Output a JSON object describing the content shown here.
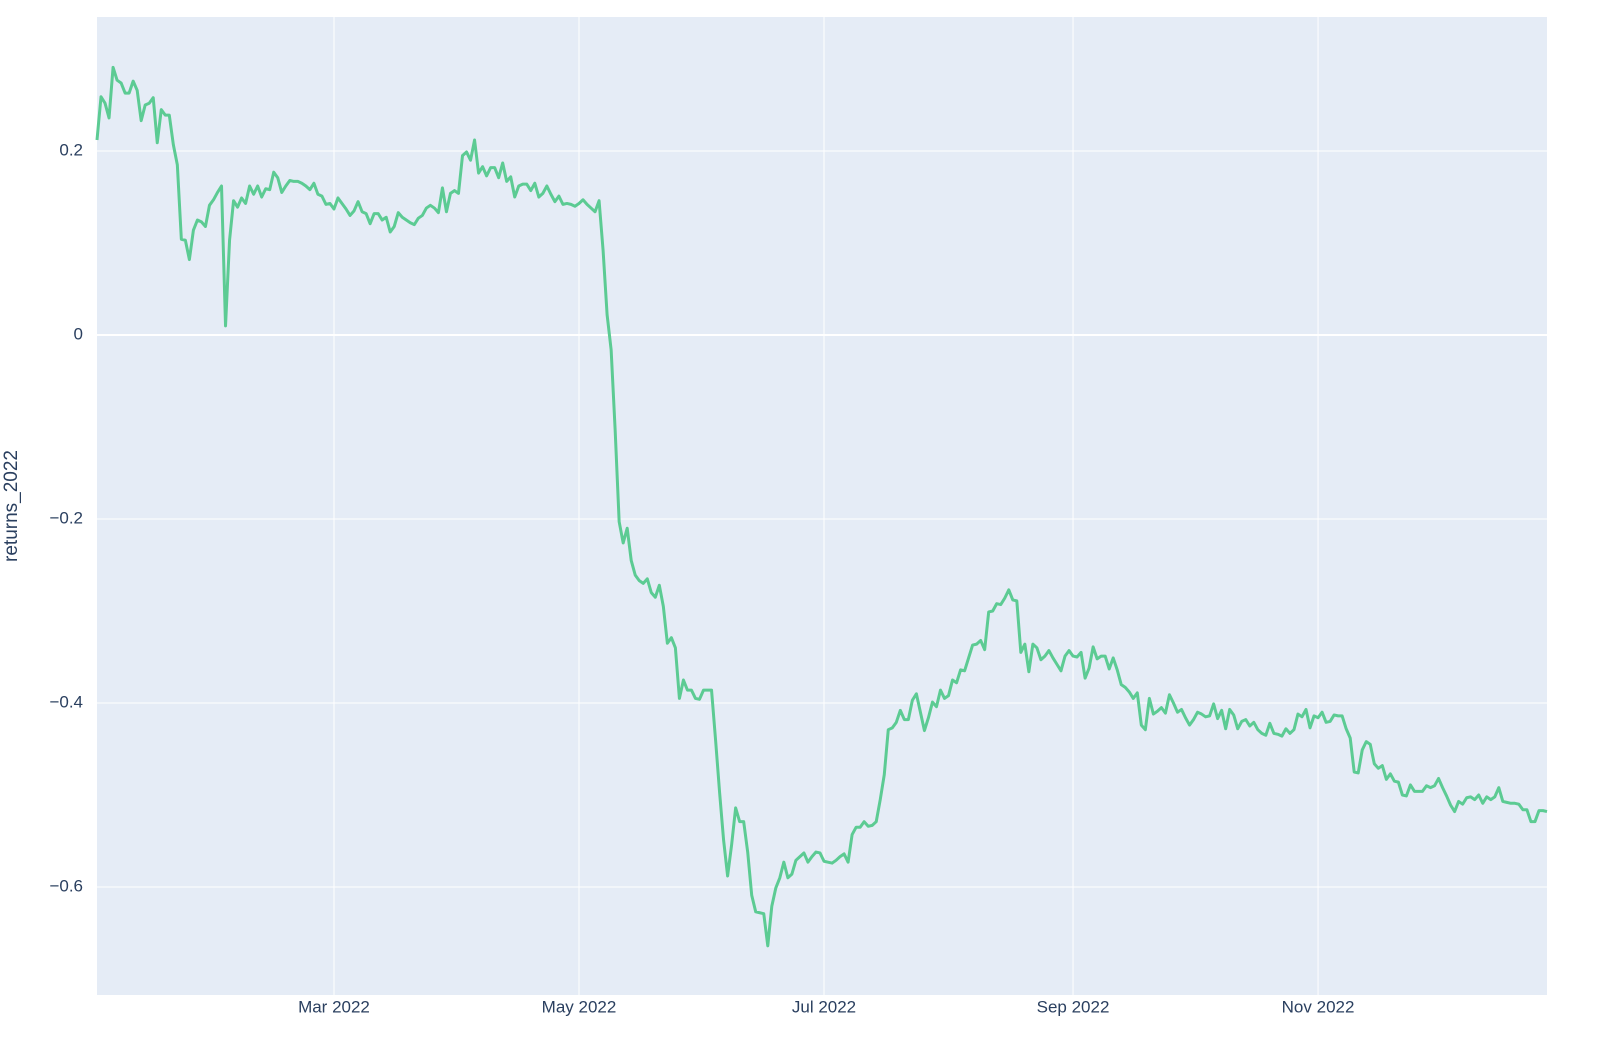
{
  "chart_data": {
    "type": "line",
    "y_label": "returns_2022",
    "color": "#5ccb93",
    "grid": true,
    "xlim": [
      "2022-01-01",
      "2022-12-28"
    ],
    "ylim": [
      -0.7174,
      0.3457
    ],
    "xticks": [
      {
        "value": "2022-03-01",
        "label": "Mar 2022"
      },
      {
        "value": "2022-05-01",
        "label": "May 2022"
      },
      {
        "value": "2022-07-01",
        "label": "Jul 2022"
      },
      {
        "value": "2022-09-01",
        "label": "Sep 2022"
      },
      {
        "value": "2022-11-01",
        "label": "Nov 2022"
      }
    ],
    "yticks": [
      {
        "value": -0.6,
        "label": "−0.6"
      },
      {
        "value": -0.4,
        "label": "−0.4"
      },
      {
        "value": -0.2,
        "label": "−0.2"
      },
      0,
      0.2
    ],
    "x": [
      "2022-01-01",
      "2022-01-02",
      "2022-01-03",
      "2022-01-04",
      "2022-01-05",
      "2022-01-06",
      "2022-01-07",
      "2022-01-08",
      "2022-01-09",
      "2022-01-10",
      "2022-01-11",
      "2022-01-12",
      "2022-01-13",
      "2022-01-14",
      "2022-01-15",
      "2022-01-16",
      "2022-01-17",
      "2022-01-18",
      "2022-01-19",
      "2022-01-20",
      "2022-01-21",
      "2022-01-22",
      "2022-01-23",
      "2022-01-24",
      "2022-01-25",
      "2022-01-26",
      "2022-01-27",
      "2022-01-28",
      "2022-01-29",
      "2022-01-30",
      "2022-01-31",
      "2022-02-01",
      "2022-02-02",
      "2022-02-03",
      "2022-02-04",
      "2022-02-05",
      "2022-02-06",
      "2022-02-07",
      "2022-02-08",
      "2022-02-09",
      "2022-02-10",
      "2022-02-11",
      "2022-02-12",
      "2022-02-13",
      "2022-02-14",
      "2022-02-15",
      "2022-02-16",
      "2022-02-17",
      "2022-02-18",
      "2022-02-19",
      "2022-02-20",
      "2022-02-21",
      "2022-02-22",
      "2022-02-23",
      "2022-02-24",
      "2022-02-25",
      "2022-02-26",
      "2022-02-27",
      "2022-02-28",
      "2022-03-01",
      "2022-03-02",
      "2022-03-03",
      "2022-03-04",
      "2022-03-05",
      "2022-03-06",
      "2022-03-07",
      "2022-03-08",
      "2022-03-09",
      "2022-03-10",
      "2022-03-11",
      "2022-03-12",
      "2022-03-13",
      "2022-03-14",
      "2022-03-15",
      "2022-03-16",
      "2022-03-17",
      "2022-03-18",
      "2022-03-19",
      "2022-03-20",
      "2022-03-21",
      "2022-03-22",
      "2022-03-23",
      "2022-03-24",
      "2022-03-25",
      "2022-03-26",
      "2022-03-27",
      "2022-03-28",
      "2022-03-29",
      "2022-03-30",
      "2022-03-31",
      "2022-04-01",
      "2022-04-02",
      "2022-04-03",
      "2022-04-04",
      "2022-04-05",
      "2022-04-06",
      "2022-04-07",
      "2022-04-08",
      "2022-04-09",
      "2022-04-10",
      "2022-04-11",
      "2022-04-12",
      "2022-04-13",
      "2022-04-14",
      "2022-04-15",
      "2022-04-16",
      "2022-04-17",
      "2022-04-18",
      "2022-04-19",
      "2022-04-20",
      "2022-04-21",
      "2022-04-22",
      "2022-04-23",
      "2022-04-24",
      "2022-04-25",
      "2022-04-26",
      "2022-04-27",
      "2022-04-28",
      "2022-04-29",
      "2022-04-30",
      "2022-05-01",
      "2022-05-02",
      "2022-05-03",
      "2022-05-04",
      "2022-05-05",
      "2022-05-06",
      "2022-05-07",
      "2022-05-08",
      "2022-05-09",
      "2022-05-10",
      "2022-05-11",
      "2022-05-12",
      "2022-05-13",
      "2022-05-14",
      "2022-05-15",
      "2022-05-16",
      "2022-05-17",
      "2022-05-18",
      "2022-05-19",
      "2022-05-20",
      "2022-05-21",
      "2022-05-22",
      "2022-05-23",
      "2022-05-24",
      "2022-05-25",
      "2022-05-26",
      "2022-05-27",
      "2022-05-28",
      "2022-05-29",
      "2022-05-30",
      "2022-05-31",
      "2022-06-01",
      "2022-06-02",
      "2022-06-03",
      "2022-06-04",
      "2022-06-05",
      "2022-06-06",
      "2022-06-07",
      "2022-06-08",
      "2022-06-09",
      "2022-06-10",
      "2022-06-11",
      "2022-06-12",
      "2022-06-13",
      "2022-06-14",
      "2022-06-15",
      "2022-06-16",
      "2022-06-17",
      "2022-06-18",
      "2022-06-19",
      "2022-06-20",
      "2022-06-21",
      "2022-06-22",
      "2022-06-23",
      "2022-06-24",
      "2022-06-25",
      "2022-06-26",
      "2022-06-27",
      "2022-06-28",
      "2022-06-29",
      "2022-06-30",
      "2022-07-01",
      "2022-07-02",
      "2022-07-03",
      "2022-07-04",
      "2022-07-05",
      "2022-07-06",
      "2022-07-07",
      "2022-07-08",
      "2022-07-09",
      "2022-07-10",
      "2022-07-11",
      "2022-07-12",
      "2022-07-13",
      "2022-07-14",
      "2022-07-15",
      "2022-07-16",
      "2022-07-17",
      "2022-07-18",
      "2022-07-19",
      "2022-07-20",
      "2022-07-21",
      "2022-07-22",
      "2022-07-23",
      "2022-07-24",
      "2022-07-25",
      "2022-07-26",
      "2022-07-27",
      "2022-07-28",
      "2022-07-29",
      "2022-07-30",
      "2022-07-31",
      "2022-08-01",
      "2022-08-02",
      "2022-08-03",
      "2022-08-04",
      "2022-08-05",
      "2022-08-06",
      "2022-08-07",
      "2022-08-08",
      "2022-08-09",
      "2022-08-10",
      "2022-08-11",
      "2022-08-12",
      "2022-08-13",
      "2022-08-14",
      "2022-08-15",
      "2022-08-16",
      "2022-08-17",
      "2022-08-18",
      "2022-08-19",
      "2022-08-20",
      "2022-08-21",
      "2022-08-22",
      "2022-08-23",
      "2022-08-24",
      "2022-08-25",
      "2022-08-26",
      "2022-08-27",
      "2022-08-28",
      "2022-08-29",
      "2022-08-30",
      "2022-08-31",
      "2022-09-01",
      "2022-09-02",
      "2022-09-03",
      "2022-09-04",
      "2022-09-05",
      "2022-09-06",
      "2022-09-07",
      "2022-09-08",
      "2022-09-09",
      "2022-09-10",
      "2022-09-11",
      "2022-09-12",
      "2022-09-13",
      "2022-09-14",
      "2022-09-15",
      "2022-09-16",
      "2022-09-17",
      "2022-09-18",
      "2022-09-19",
      "2022-09-20",
      "2022-09-21",
      "2022-09-22",
      "2022-09-23",
      "2022-09-24",
      "2022-09-25",
      "2022-09-26",
      "2022-09-27",
      "2022-09-28",
      "2022-09-29",
      "2022-09-30",
      "2022-10-01",
      "2022-10-02",
      "2022-10-03",
      "2022-10-04",
      "2022-10-05",
      "2022-10-06",
      "2022-10-07",
      "2022-10-08",
      "2022-10-09",
      "2022-10-10",
      "2022-10-11",
      "2022-10-12",
      "2022-10-13",
      "2022-10-14",
      "2022-10-15",
      "2022-10-16",
      "2022-10-17",
      "2022-10-18",
      "2022-10-19",
      "2022-10-20",
      "2022-10-21",
      "2022-10-22",
      "2022-10-23",
      "2022-10-24",
      "2022-10-25",
      "2022-10-26",
      "2022-10-27",
      "2022-10-28",
      "2022-10-29",
      "2022-10-30",
      "2022-10-31",
      "2022-11-01",
      "2022-11-02",
      "2022-11-03",
      "2022-11-04",
      "2022-11-05",
      "2022-11-06",
      "2022-11-07",
      "2022-11-08",
      "2022-11-09",
      "2022-11-10",
      "2022-11-11",
      "2022-11-12",
      "2022-11-13",
      "2022-11-14",
      "2022-11-15",
      "2022-11-16",
      "2022-11-17",
      "2022-11-18",
      "2022-11-19",
      "2022-11-20",
      "2022-11-21",
      "2022-11-22",
      "2022-11-23",
      "2022-11-24",
      "2022-11-25",
      "2022-11-26",
      "2022-11-27",
      "2022-11-28",
      "2022-11-29",
      "2022-11-30",
      "2022-12-01",
      "2022-12-02",
      "2022-12-03",
      "2022-12-04",
      "2022-12-05",
      "2022-12-06",
      "2022-12-07",
      "2022-12-08",
      "2022-12-09",
      "2022-12-10",
      "2022-12-11",
      "2022-12-12",
      "2022-12-13",
      "2022-12-14",
      "2022-12-15",
      "2022-12-16",
      "2022-12-17",
      "2022-12-18",
      "2022-12-19",
      "2022-12-20",
      "2022-12-21",
      "2022-12-22",
      "2022-12-23",
      "2022-12-24",
      "2022-12-25",
      "2022-12-26",
      "2022-12-27",
      "2022-12-28"
    ],
    "values": [
      0.212,
      0.259,
      0.252,
      0.236,
      0.291,
      0.277,
      0.274,
      0.263,
      0.263,
      0.276,
      0.266,
      0.233,
      0.25,
      0.252,
      0.258,
      0.209,
      0.245,
      0.239,
      0.239,
      0.207,
      0.185,
      0.104,
      0.103,
      0.082,
      0.114,
      0.125,
      0.123,
      0.118,
      0.141,
      0.147,
      0.155,
      0.162,
      0.01,
      0.103,
      0.146,
      0.139,
      0.149,
      0.143,
      0.162,
      0.153,
      0.162,
      0.15,
      0.159,
      0.158,
      0.177,
      0.171,
      0.155,
      0.162,
      0.168,
      0.167,
      0.167,
      0.165,
      0.162,
      0.158,
      0.165,
      0.153,
      0.151,
      0.142,
      0.143,
      0.137,
      0.149,
      0.143,
      0.137,
      0.13,
      0.135,
      0.145,
      0.134,
      0.132,
      0.121,
      0.132,
      0.132,
      0.125,
      0.128,
      0.112,
      0.118,
      0.133,
      0.128,
      0.125,
      0.122,
      0.12,
      0.127,
      0.13,
      0.138,
      0.141,
      0.138,
      0.133,
      0.16,
      0.134,
      0.154,
      0.157,
      0.154,
      0.195,
      0.199,
      0.19,
      0.212,
      0.176,
      0.183,
      0.173,
      0.182,
      0.182,
      0.171,
      0.187,
      0.167,
      0.172,
      0.15,
      0.162,
      0.164,
      0.164,
      0.157,
      0.165,
      0.15,
      0.154,
      0.162,
      0.153,
      0.145,
      0.151,
      0.142,
      0.143,
      0.142,
      0.14,
      0.143,
      0.147,
      0.142,
      0.138,
      0.134,
      0.146,
      0.092,
      0.022,
      -0.016,
      -0.103,
      -0.203,
      -0.226,
      -0.21,
      -0.245,
      -0.261,
      -0.267,
      -0.27,
      -0.265,
      -0.28,
      -0.285,
      -0.272,
      -0.295,
      -0.335,
      -0.329,
      -0.34,
      -0.395,
      -0.375,
      -0.386,
      -0.386,
      -0.395,
      -0.396,
      -0.386,
      -0.386,
      -0.386,
      -0.44,
      -0.497,
      -0.549,
      -0.588,
      -0.554,
      -0.514,
      -0.529,
      -0.529,
      -0.562,
      -0.609,
      -0.627,
      -0.628,
      -0.629,
      -0.664,
      -0.621,
      -0.601,
      -0.59,
      -0.573,
      -0.59,
      -0.586,
      -0.571,
      -0.567,
      -0.563,
      -0.573,
      -0.567,
      -0.562,
      -0.563,
      -0.572,
      -0.573,
      -0.574,
      -0.571,
      -0.567,
      -0.564,
      -0.573,
      -0.543,
      -0.535,
      -0.535,
      -0.529,
      -0.534,
      -0.533,
      -0.529,
      -0.505,
      -0.478,
      -0.429,
      -0.427,
      -0.421,
      -0.408,
      -0.418,
      -0.418,
      -0.397,
      -0.39,
      -0.41,
      -0.43,
      -0.416,
      -0.399,
      -0.404,
      -0.386,
      -0.395,
      -0.392,
      -0.375,
      -0.378,
      -0.364,
      -0.365,
      -0.351,
      -0.337,
      -0.336,
      -0.332,
      -0.342,
      -0.301,
      -0.3,
      -0.292,
      -0.293,
      -0.286,
      -0.277,
      -0.288,
      -0.289,
      -0.345,
      -0.336,
      -0.366,
      -0.336,
      -0.34,
      -0.353,
      -0.349,
      -0.343,
      -0.351,
      -0.358,
      -0.365,
      -0.349,
      -0.343,
      -0.349,
      -0.35,
      -0.345,
      -0.373,
      -0.362,
      -0.339,
      -0.352,
      -0.349,
      -0.349,
      -0.363,
      -0.351,
      -0.364,
      -0.38,
      -0.383,
      -0.388,
      -0.395,
      -0.389,
      -0.424,
      -0.429,
      -0.395,
      -0.412,
      -0.409,
      -0.405,
      -0.411,
      -0.391,
      -0.4,
      -0.41,
      -0.407,
      -0.416,
      -0.424,
      -0.418,
      -0.41,
      -0.412,
      -0.415,
      -0.414,
      -0.401,
      -0.417,
      -0.408,
      -0.428,
      -0.407,
      -0.413,
      -0.428,
      -0.42,
      -0.418,
      -0.425,
      -0.421,
      -0.429,
      -0.433,
      -0.435,
      -0.422,
      -0.433,
      -0.434,
      -0.436,
      -0.428,
      -0.433,
      -0.429,
      -0.412,
      -0.415,
      -0.407,
      -0.427,
      -0.414,
      -0.416,
      -0.41,
      -0.421,
      -0.42,
      -0.413,
      -0.414,
      -0.414,
      -0.428,
      -0.438,
      -0.475,
      -0.476,
      -0.451,
      -0.442,
      -0.445,
      -0.466,
      -0.471,
      -0.468,
      -0.483,
      -0.477,
      -0.485,
      -0.486,
      -0.5,
      -0.501,
      -0.489,
      -0.496,
      -0.496,
      -0.496,
      -0.49,
      -0.492,
      -0.49,
      -0.482,
      -0.492,
      -0.501,
      -0.511,
      -0.518,
      -0.507,
      -0.51,
      -0.503,
      -0.502,
      -0.505,
      -0.5,
      -0.509,
      -0.502,
      -0.505,
      -0.502,
      -0.492,
      -0.507,
      -0.508,
      -0.509,
      -0.509,
      -0.51,
      -0.516,
      -0.516,
      -0.529,
      -0.529,
      -0.517,
      -0.517,
      -0.518
    ]
  }
}
